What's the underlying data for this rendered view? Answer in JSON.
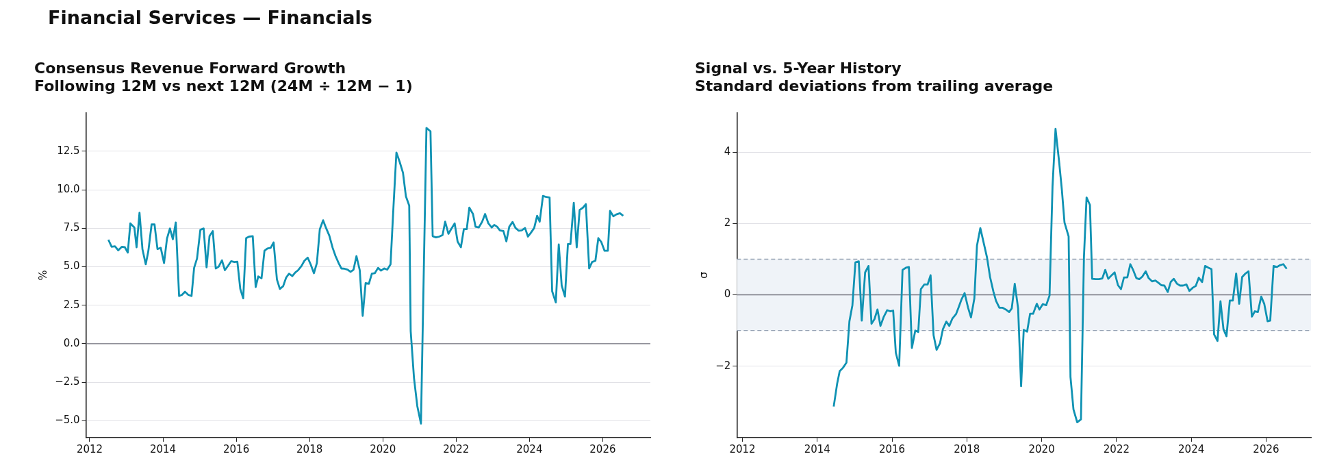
{
  "chart_data": [
    {
      "type": "line",
      "title": "Consensus Revenue Forward Growth",
      "subtitle": "Following 12M vs next 12M (24M ÷ 12M − 1)",
      "ylabel": "%",
      "annotations": [
        "Financial Services — Financials"
      ],
      "xlim": [
        2011.9,
        2027.3
      ],
      "xticks": [
        2012,
        2014,
        2016,
        2018,
        2020,
        2022,
        2024,
        2026
      ],
      "ylim": [
        -6.1,
        15.0
      ],
      "yticks": [
        {
          "value": -5,
          "label": "−5.0"
        },
        {
          "value": -2.5,
          "label": "−2.5"
        },
        {
          "value": 0,
          "label": "0.0"
        },
        2.5,
        {
          "value": 5,
          "label": "5.0"
        },
        7.5,
        {
          "value": 10,
          "label": "10.0"
        },
        12.5
      ],
      "grid": "y",
      "ref_lines": [
        {
          "axis": "y",
          "value": 0,
          "color": "#75757f"
        }
      ],
      "series": [
        {
          "color": "#0f92b3",
          "x": [
            2012.51,
            2012.6,
            2012.69,
            2012.78,
            2012.88,
            2012.96,
            2013.04,
            2013.11,
            2013.22,
            2013.28,
            2013.36,
            2013.44,
            2013.53,
            2013.6,
            2013.69,
            2013.77,
            2013.85,
            2013.94,
            2014.03,
            2014.11,
            2014.19,
            2014.27,
            2014.35,
            2014.44,
            2014.52,
            2014.6,
            2014.69,
            2014.78,
            2014.85,
            2014.93,
            2015.02,
            2015.11,
            2015.19,
            2015.27,
            2015.36,
            2015.44,
            2015.52,
            2015.61,
            2015.69,
            2015.78,
            2015.86,
            2015.95,
            2016.03,
            2016.11,
            2016.19,
            2016.27,
            2016.35,
            2016.45,
            2016.53,
            2016.6,
            2016.69,
            2016.77,
            2016.85,
            2016.94,
            2017.02,
            2017.11,
            2017.19,
            2017.28,
            2017.36,
            2017.44,
            2017.53,
            2017.61,
            2017.69,
            2017.78,
            2017.86,
            2017.95,
            2018.03,
            2018.12,
            2018.2,
            2018.28,
            2018.37,
            2018.45,
            2018.54,
            2018.63,
            2018.71,
            2018.8,
            2018.87,
            2018.96,
            2019.04,
            2019.12,
            2019.2,
            2019.28,
            2019.37,
            2019.45,
            2019.53,
            2019.62,
            2019.7,
            2019.78,
            2019.87,
            2019.95,
            2020.04,
            2020.12,
            2020.21,
            2020.29,
            2020.37,
            2020.46,
            2020.55,
            2020.63,
            2020.72,
            2020.76,
            2020.85,
            2020.94,
            2021.04,
            2021.19,
            2021.3,
            2021.36,
            2021.45,
            2021.54,
            2021.63,
            2021.7,
            2021.79,
            2021.87,
            2021.96,
            2022.04,
            2022.13,
            2022.21,
            2022.29,
            2022.36,
            2022.46,
            2022.53,
            2022.62,
            2022.71,
            2022.79,
            2022.88,
            2022.97,
            2023.04,
            2023.12,
            2023.19,
            2023.29,
            2023.37,
            2023.45,
            2023.54,
            2023.62,
            2023.71,
            2023.79,
            2023.88,
            2023.96,
            2024.04,
            2024.13,
            2024.21,
            2024.28,
            2024.37,
            2024.46,
            2024.55,
            2024.62,
            2024.72,
            2024.8,
            2024.88,
            2024.97,
            2025.05,
            2025.12,
            2025.21,
            2025.29,
            2025.37,
            2025.46,
            2025.54,
            2025.63,
            2025.71,
            2025.8,
            2025.88,
            2025.96,
            2026.05,
            2026.14,
            2026.2,
            2026.29,
            2026.37,
            2026.47,
            2026.56
          ],
          "values": [
            6.76,
            6.3,
            6.33,
            6.07,
            6.3,
            6.27,
            5.92,
            7.82,
            7.55,
            6.27,
            8.51,
            6.15,
            5.16,
            6.0,
            7.75,
            7.75,
            6.15,
            6.23,
            5.24,
            6.83,
            7.49,
            6.79,
            7.88,
            3.1,
            3.18,
            3.38,
            3.18,
            3.1,
            4.93,
            5.54,
            7.4,
            7.49,
            4.96,
            6.99,
            7.32,
            4.89,
            5.01,
            5.42,
            4.78,
            5.08,
            5.36,
            5.31,
            5.33,
            3.56,
            2.95,
            6.86,
            6.96,
            6.99,
            3.68,
            4.37,
            4.25,
            6.04,
            6.19,
            6.23,
            6.58,
            4.17,
            3.56,
            3.74,
            4.29,
            4.55,
            4.4,
            4.63,
            4.78,
            5.05,
            5.39,
            5.59,
            5.16,
            4.58,
            5.24,
            7.44,
            8.02,
            7.52,
            7.02,
            6.23,
            5.69,
            5.21,
            4.89,
            4.87,
            4.81,
            4.67,
            4.81,
            5.69,
            4.78,
            1.81,
            3.94,
            3.9,
            4.55,
            4.58,
            4.93,
            4.75,
            4.89,
            4.81,
            5.16,
            8.89,
            12.42,
            11.81,
            11.1,
            9.57,
            8.97,
            0.82,
            -2.22,
            -4.05,
            -5.19,
            14.02,
            13.8,
            6.99,
            6.91,
            6.96,
            7.06,
            7.93,
            7.14,
            7.47,
            7.82,
            6.64,
            6.27,
            7.44,
            7.44,
            8.84,
            8.43,
            7.6,
            7.56,
            7.93,
            8.43,
            7.82,
            7.55,
            7.72,
            7.6,
            7.37,
            7.32,
            6.65,
            7.6,
            7.91,
            7.52,
            7.34,
            7.37,
            7.52,
            6.96,
            7.21,
            7.52,
            8.31,
            7.93,
            9.6,
            9.53,
            9.5,
            3.41,
            2.68,
            6.45,
            3.79,
            3.06,
            6.48,
            6.48,
            9.16,
            6.26,
            8.69,
            8.84,
            9.07,
            4.89,
            5.31,
            5.39,
            6.86,
            6.61,
            6.04,
            6.04,
            8.63,
            8.28,
            8.4,
            8.48,
            8.31
          ]
        }
      ]
    },
    {
      "type": "line",
      "title": "Signal vs. 5-Year History",
      "subtitle": "Standard deviations from trailing average",
      "ylabel": "σ",
      "xlim": [
        2011.85,
        2027.2
      ],
      "xticks": [
        2012,
        2014,
        2016,
        2018,
        2020,
        2022,
        2024,
        2026
      ],
      "ylim": [
        -4.0,
        5.1
      ],
      "yticks": [
        {
          "value": -2,
          "label": "−2"
        },
        0,
        2,
        4
      ],
      "grid": "y",
      "bands": [
        {
          "axis": "y",
          "from": -1,
          "to": 1,
          "color": "#eff3f8"
        }
      ],
      "ref_lines": [
        {
          "axis": "y",
          "value": 0,
          "color": "#75757f"
        },
        {
          "axis": "y",
          "value": 1,
          "color": "#97a3b4",
          "line_style": "dashed"
        },
        {
          "axis": "y",
          "value": -1,
          "color": "#97a3b4",
          "line_style": "dashed"
        }
      ],
      "series": [
        {
          "color": "#0f92b3",
          "x": [
            2014.44,
            2014.53,
            2014.6,
            2014.69,
            2014.78,
            2014.86,
            2014.94,
            2015.02,
            2015.11,
            2015.19,
            2015.28,
            2015.37,
            2015.45,
            2015.53,
            2015.61,
            2015.69,
            2015.78,
            2015.87,
            2015.95,
            2016.03,
            2016.1,
            2016.19,
            2016.28,
            2016.37,
            2016.45,
            2016.53,
            2016.62,
            2016.7,
            2016.77,
            2016.86,
            2016.95,
            2017.03,
            2017.11,
            2017.19,
            2017.28,
            2017.36,
            2017.45,
            2017.53,
            2017.61,
            2017.71,
            2017.78,
            2017.86,
            2017.94,
            2018.03,
            2018.11,
            2018.2,
            2018.27,
            2018.36,
            2018.46,
            2018.54,
            2018.62,
            2018.71,
            2018.78,
            2018.87,
            2018.95,
            2019.04,
            2019.13,
            2019.2,
            2019.28,
            2019.37,
            2019.45,
            2019.52,
            2019.61,
            2019.69,
            2019.77,
            2019.87,
            2019.94,
            2020.03,
            2020.12,
            2020.21,
            2020.29,
            2020.37,
            2020.47,
            2020.54,
            2020.61,
            2020.72,
            2020.77,
            2020.85,
            2020.95,
            2021.05,
            2021.13,
            2021.2,
            2021.29,
            2021.35,
            2021.45,
            2021.53,
            2021.62,
            2021.7,
            2021.78,
            2021.87,
            2021.95,
            2022.04,
            2022.12,
            2022.2,
            2022.29,
            2022.37,
            2022.44,
            2022.53,
            2022.61,
            2022.69,
            2022.78,
            2022.86,
            2022.95,
            2023.04,
            2023.12,
            2023.2,
            2023.28,
            2023.37,
            2023.45,
            2023.53,
            2023.62,
            2023.7,
            2023.78,
            2023.87,
            2023.95,
            2024.04,
            2024.12,
            2024.2,
            2024.29,
            2024.37,
            2024.46,
            2024.54,
            2024.61,
            2024.7,
            2024.78,
            2024.86,
            2024.94,
            2025.03,
            2025.11,
            2025.2,
            2025.28,
            2025.36,
            2025.45,
            2025.53,
            2025.62,
            2025.7,
            2025.78,
            2025.87,
            2025.95,
            2026.04,
            2026.11,
            2026.2,
            2026.29,
            2026.37,
            2026.46,
            2026.55
          ],
          "values": [
            -3.13,
            -2.5,
            -2.14,
            -2.04,
            -1.9,
            -0.74,
            -0.29,
            0.91,
            0.94,
            -0.72,
            0.63,
            0.81,
            -0.81,
            -0.68,
            -0.41,
            -0.87,
            -0.61,
            -0.43,
            -0.46,
            -0.44,
            -1.62,
            -1.99,
            0.7,
            0.76,
            0.78,
            -1.49,
            -1.0,
            -1.04,
            0.16,
            0.29,
            0.29,
            0.55,
            -1.13,
            -1.54,
            -1.36,
            -0.96,
            -0.75,
            -0.87,
            -0.67,
            -0.54,
            -0.35,
            -0.12,
            0.05,
            -0.35,
            -0.63,
            -0.1,
            1.38,
            1.87,
            1.41,
            1.04,
            0.5,
            0.09,
            -0.17,
            -0.36,
            -0.36,
            -0.41,
            -0.48,
            -0.38,
            0.31,
            -0.38,
            -2.56,
            -0.98,
            -1.03,
            -0.53,
            -0.53,
            -0.25,
            -0.41,
            -0.26,
            -0.29,
            -0.02,
            3.04,
            4.65,
            3.69,
            2.94,
            2.03,
            1.64,
            -2.3,
            -3.21,
            -3.57,
            -3.49,
            1.06,
            2.73,
            2.52,
            0.45,
            0.44,
            0.44,
            0.46,
            0.7,
            0.45,
            0.55,
            0.63,
            0.27,
            0.16,
            0.49,
            0.49,
            0.86,
            0.71,
            0.47,
            0.44,
            0.51,
            0.66,
            0.47,
            0.38,
            0.4,
            0.34,
            0.27,
            0.26,
            0.08,
            0.36,
            0.45,
            0.31,
            0.26,
            0.26,
            0.29,
            0.11,
            0.2,
            0.25,
            0.48,
            0.36,
            0.81,
            0.76,
            0.72,
            -1.11,
            -1.29,
            -0.18,
            -0.96,
            -1.16,
            -0.16,
            -0.16,
            0.6,
            -0.25,
            0.5,
            0.6,
            0.66,
            -0.61,
            -0.46,
            -0.48,
            -0.05,
            -0.25,
            -0.74,
            -0.72,
            0.81,
            0.78,
            0.83,
            0.86,
            0.73
          ]
        }
      ]
    }
  ]
}
